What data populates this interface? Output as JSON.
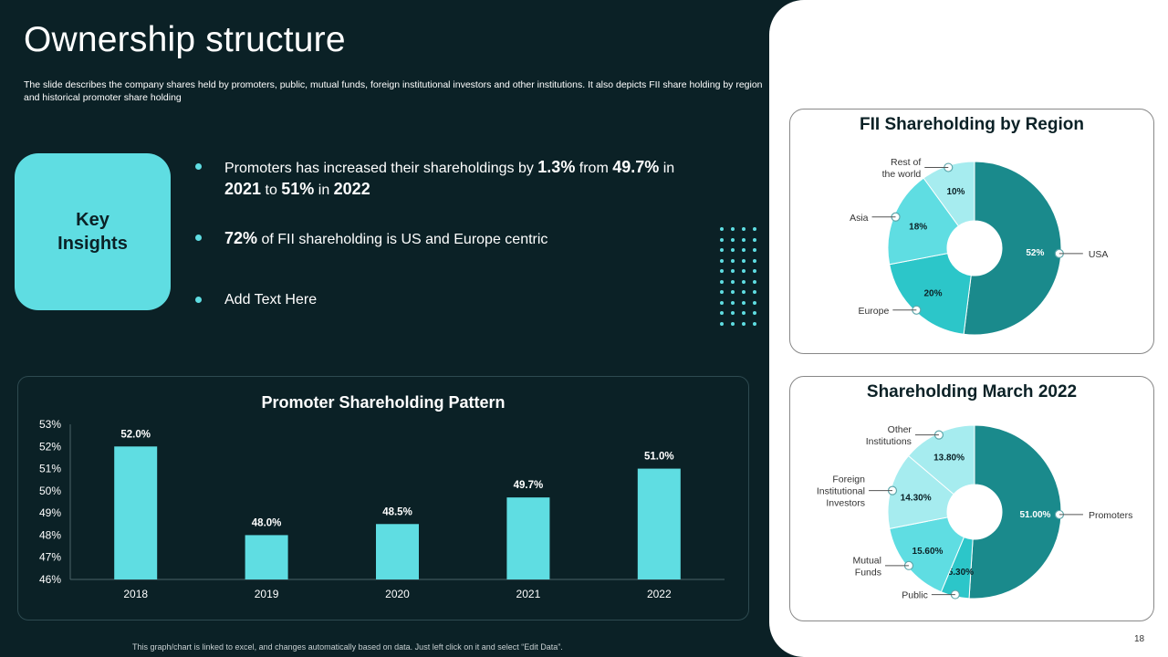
{
  "title": "Ownership structure",
  "subtitle": "The slide describes the company shares held by promoters, public, mutual funds, foreign institutional investors and other institutions. It also depicts FII share holding by region and historical promoter share holding",
  "key_insights": {
    "label": "Key\nInsights",
    "items": [
      {
        "parts": [
          {
            "t": "Promoters has increased their shareholdings by ",
            "b": false
          },
          {
            "t": "1.3%",
            "b": true
          },
          {
            "t": " from ",
            "b": false
          },
          {
            "t": "49.7%",
            "b": true
          },
          {
            "t": " in ",
            "b": false
          },
          {
            "t": "2021",
            "b": true
          },
          {
            "t": " to ",
            "b": false
          },
          {
            "t": "51%",
            "b": true
          },
          {
            "t": " in ",
            "b": false
          },
          {
            "t": "2022",
            "b": true
          }
        ]
      },
      {
        "parts": [
          {
            "t": "72%",
            "b": true
          },
          {
            "t": " of FII  shareholding is US and Europe centric",
            "b": false
          }
        ]
      },
      {
        "parts": [
          {
            "t": "Add Text Here",
            "b": false
          }
        ]
      }
    ]
  },
  "colors": {
    "background": "#0b2126",
    "accent": "#5fdde2",
    "dark_teal": "#1a8a8c",
    "teal": "#2cc6c9",
    "light_teal": "#5fdde2",
    "pale_teal": "#a6ecef"
  },
  "footer": "This graph/chart is linked to excel, and changes automatically based on data. Just left click on it and select “Edit Data”.",
  "page_number": "18",
  "chart_data": [
    {
      "type": "bar",
      "title": "Promoter Shareholding Pattern",
      "categories": [
        "2018",
        "2019",
        "2020",
        "2021",
        "2022"
      ],
      "values": [
        52.0,
        48.0,
        48.5,
        49.7,
        51.0
      ],
      "value_labels": [
        "52.0%",
        "48.0%",
        "48.5%",
        "49.7%",
        "51.0%"
      ],
      "ylim": [
        46,
        53
      ],
      "yticks": [
        "46%",
        "47%",
        "48%",
        "49%",
        "50%",
        "51%",
        "52%",
        "53%"
      ],
      "color": "#5fdde2"
    },
    {
      "type": "pie",
      "title": "FII Shareholding by Region",
      "donut": true,
      "slices": [
        {
          "label": "USA",
          "value": 52,
          "display": "52%",
          "color": "#1a8a8c"
        },
        {
          "label": "Europe",
          "value": 20,
          "display": "20%",
          "color": "#2cc6c9"
        },
        {
          "label": "Asia",
          "value": 18,
          "display": "18%",
          "color": "#5fdde2"
        },
        {
          "label": "Rest of\nthe world",
          "value": 10,
          "display": "10%",
          "color": "#a6ecef"
        }
      ]
    },
    {
      "type": "pie",
      "title": "Shareholding March 2022",
      "donut": true,
      "slices": [
        {
          "label": "Promoters",
          "value": 51.0,
          "display": "51.00%",
          "color": "#1a8a8c"
        },
        {
          "label": "Public",
          "value": 5.3,
          "display": "5.30%",
          "color": "#2cc6c9"
        },
        {
          "label": "Mutual\nFunds",
          "value": 15.6,
          "display": "15.60%",
          "color": "#5fdde2"
        },
        {
          "label": "Foreign\nInstitutional\nInvestors",
          "value": 14.3,
          "display": "14.30%",
          "color": "#a6ecef"
        },
        {
          "label": "Other\nInstitutions",
          "value": 13.8,
          "display": "13.80%",
          "color": "#a6ecef"
        }
      ]
    }
  ]
}
